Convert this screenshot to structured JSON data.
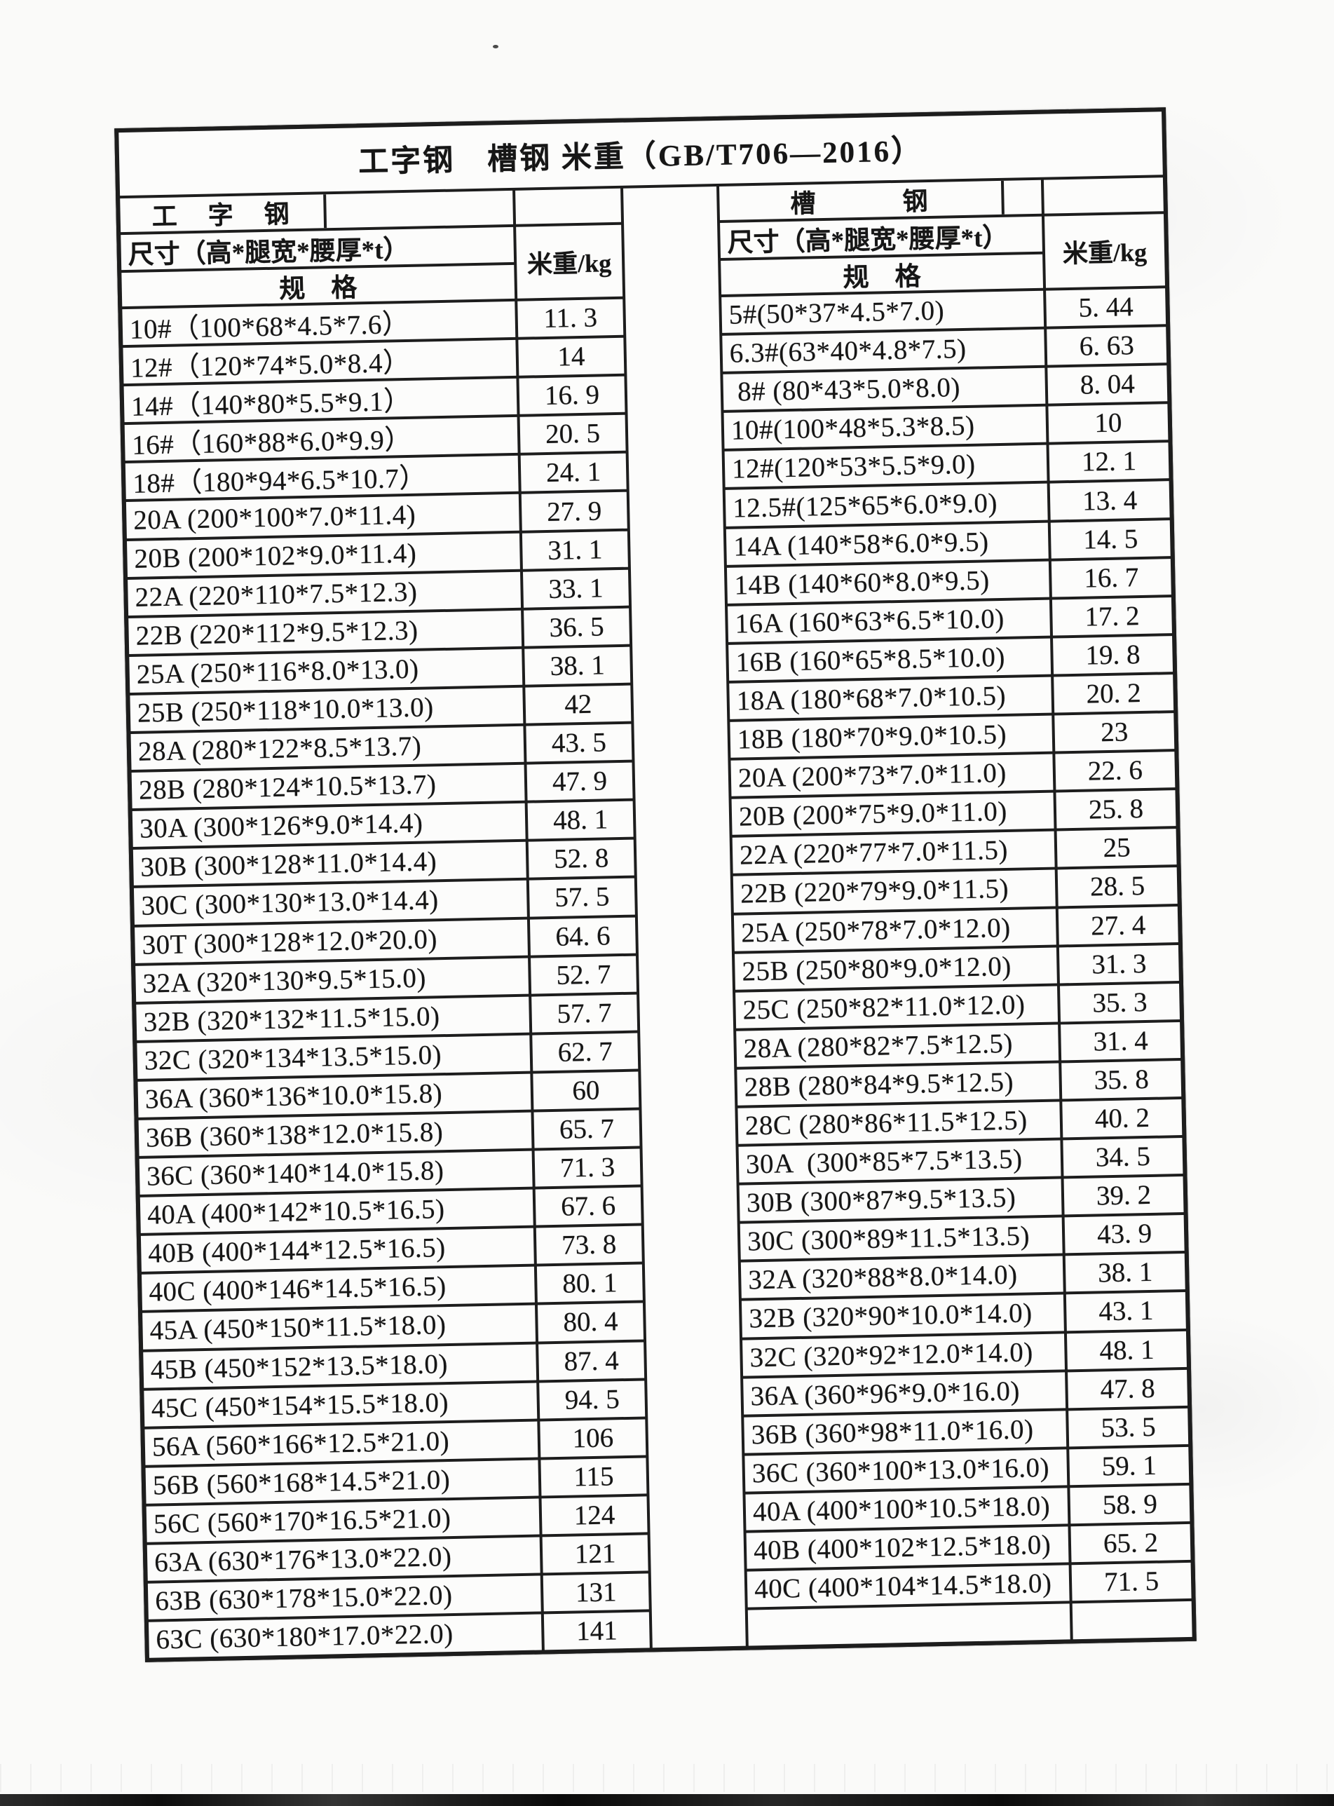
{
  "title": "工字钢　槽钢 米重（GB/T706—2016）",
  "sections": [
    {
      "name": "工　字　钢",
      "size_header": "尺寸（高*腿宽*腰厚*t）",
      "grade_header": "规　格",
      "weight_header": "米重/kg",
      "rows": [
        {
          "spec": "10#（100*68*4.5*7.6）",
          "weight": "11. 3"
        },
        {
          "spec": "12#（120*74*5.0*8.4）",
          "weight": "14"
        },
        {
          "spec": "14#（140*80*5.5*9.1）",
          "weight": "16. 9"
        },
        {
          "spec": "16#（160*88*6.0*9.9）",
          "weight": "20. 5"
        },
        {
          "spec": "18#（180*94*6.5*10.7）",
          "weight": "24. 1"
        },
        {
          "spec": "20A (200*100*7.0*11.4)",
          "weight": "27. 9"
        },
        {
          "spec": "20B (200*102*9.0*11.4)",
          "weight": "31. 1"
        },
        {
          "spec": "22A (220*110*7.5*12.3)",
          "weight": "33. 1"
        },
        {
          "spec": "22B (220*112*9.5*12.3)",
          "weight": "36. 5"
        },
        {
          "spec": "25A (250*116*8.0*13.0)",
          "weight": "38. 1"
        },
        {
          "spec": "25B (250*118*10.0*13.0)",
          "weight": "42"
        },
        {
          "spec": "28A (280*122*8.5*13.7)",
          "weight": "43. 5"
        },
        {
          "spec": "28B (280*124*10.5*13.7)",
          "weight": "47. 9"
        },
        {
          "spec": "30A (300*126*9.0*14.4)",
          "weight": "48. 1"
        },
        {
          "spec": "30B (300*128*11.0*14.4)",
          "weight": "52. 8"
        },
        {
          "spec": "30C (300*130*13.0*14.4)",
          "weight": "57. 5"
        },
        {
          "spec": "30T (300*128*12.0*20.0)",
          "weight": "64. 6"
        },
        {
          "spec": "32A (320*130*9.5*15.0)",
          "weight": "52. 7"
        },
        {
          "spec": "32B (320*132*11.5*15.0)",
          "weight": "57. 7"
        },
        {
          "spec": "32C (320*134*13.5*15.0)",
          "weight": "62. 7"
        },
        {
          "spec": "36A (360*136*10.0*15.8)",
          "weight": "60"
        },
        {
          "spec": "36B (360*138*12.0*15.8)",
          "weight": "65. 7"
        },
        {
          "spec": "36C (360*140*14.0*15.8)",
          "weight": "71. 3"
        },
        {
          "spec": "40A (400*142*10.5*16.5)",
          "weight": "67. 6"
        },
        {
          "spec": "40B (400*144*12.5*16.5)",
          "weight": "73. 8"
        },
        {
          "spec": "40C (400*146*14.5*16.5)",
          "weight": "80. 1"
        },
        {
          "spec": "45A (450*150*11.5*18.0)",
          "weight": "80. 4"
        },
        {
          "spec": "45B (450*152*13.5*18.0)",
          "weight": "87. 4"
        },
        {
          "spec": "45C (450*154*15.5*18.0)",
          "weight": "94. 5"
        },
        {
          "spec": "56A (560*166*12.5*21.0)",
          "weight": "106"
        },
        {
          "spec": "56B (560*168*14.5*21.0)",
          "weight": "115"
        },
        {
          "spec": "56C (560*170*16.5*21.0)",
          "weight": "124"
        },
        {
          "spec": "63A (630*176*13.0*22.0)",
          "weight": "121"
        },
        {
          "spec": "63B (630*178*15.0*22.0)",
          "weight": "131"
        },
        {
          "spec": "63C (630*180*17.0*22.0)",
          "weight": "141"
        }
      ]
    },
    {
      "name": "槽　　　钢",
      "size_header": "尺寸（高*腿宽*腰厚*t）",
      "grade_header": "规　格",
      "weight_header": "米重/kg",
      "rows": [
        {
          "spec": "5#(50*37*4.5*7.0)",
          "weight": "5. 44"
        },
        {
          "spec": "6.3#(63*40*4.8*7.5)",
          "weight": "6. 63"
        },
        {
          "spec": " 8# (80*43*5.0*8.0)",
          "weight": "8. 04"
        },
        {
          "spec": "10#(100*48*5.3*8.5)",
          "weight": "10"
        },
        {
          "spec": "12#(120*53*5.5*9.0)",
          "weight": "12. 1"
        },
        {
          "spec": "12.5#(125*65*6.0*9.0)",
          "weight": "13. 4"
        },
        {
          "spec": "14A (140*58*6.0*9.5)",
          "weight": "14. 5"
        },
        {
          "spec": "14B (140*60*8.0*9.5)",
          "weight": "16. 7"
        },
        {
          "spec": "16A (160*63*6.5*10.0)",
          "weight": "17. 2"
        },
        {
          "spec": "16B (160*65*8.5*10.0)",
          "weight": "19. 8"
        },
        {
          "spec": "18A (180*68*7.0*10.5)",
          "weight": "20. 2"
        },
        {
          "spec": "18B (180*70*9.0*10.5)",
          "weight": "23"
        },
        {
          "spec": "20A (200*73*7.0*11.0)",
          "weight": "22. 6"
        },
        {
          "spec": "20B (200*75*9.0*11.0)",
          "weight": "25. 8"
        },
        {
          "spec": "22A (220*77*7.0*11.5)",
          "weight": "25"
        },
        {
          "spec": "22B (220*79*9.0*11.5)",
          "weight": "28. 5"
        },
        {
          "spec": "25A (250*78*7.0*12.0)",
          "weight": "27. 4"
        },
        {
          "spec": "25B (250*80*9.0*12.0)",
          "weight": "31. 3"
        },
        {
          "spec": "25C (250*82*11.0*12.0)",
          "weight": "35. 3"
        },
        {
          "spec": "28A (280*82*7.5*12.5)",
          "weight": "31. 4"
        },
        {
          "spec": "28B (280*84*9.5*12.5)",
          "weight": "35. 8"
        },
        {
          "spec": "28C (280*86*11.5*12.5)",
          "weight": "40. 2"
        },
        {
          "spec": "30A  (300*85*7.5*13.5)",
          "weight": "34. 5"
        },
        {
          "spec": "30B (300*87*9.5*13.5)",
          "weight": "39. 2"
        },
        {
          "spec": "30C (300*89*11.5*13.5)",
          "weight": "43. 9"
        },
        {
          "spec": "32A (320*88*8.0*14.0)",
          "weight": "38. 1"
        },
        {
          "spec": "32B (320*90*10.0*14.0)",
          "weight": "43. 1"
        },
        {
          "spec": "32C (320*92*12.0*14.0)",
          "weight": "48. 1"
        },
        {
          "spec": "36A (360*96*9.0*16.0)",
          "weight": "47. 8"
        },
        {
          "spec": "36B (360*98*11.0*16.0)",
          "weight": "53. 5"
        },
        {
          "spec": "36C (360*100*13.0*16.0)",
          "weight": "59. 1"
        },
        {
          "spec": "40A (400*100*10.5*18.0)",
          "weight": "58. 9"
        },
        {
          "spec": "40B (400*102*12.5*18.0)",
          "weight": "65. 2"
        },
        {
          "spec": "40C (400*104*14.5*18.0)",
          "weight": "71. 5"
        },
        {
          "spec": "",
          "weight": ""
        }
      ]
    }
  ]
}
